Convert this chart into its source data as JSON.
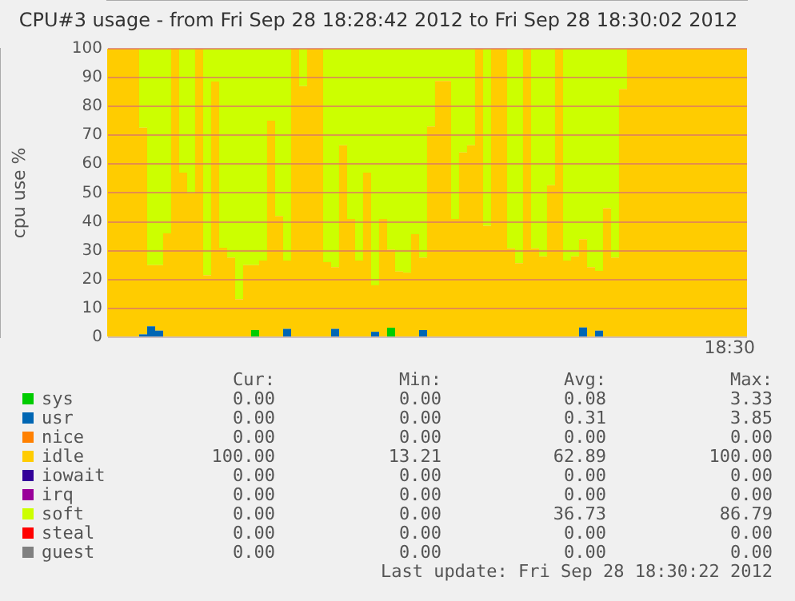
{
  "chart_data": {
    "type": "bar",
    "stacked": true,
    "title": "CPU#3 usage - from Fri Sep 28 18:28:42 2012 to Fri Sep 28 18:30:02 2012",
    "ylabel": "cpu use %",
    "categories": [
      null,
      null,
      null,
      null,
      null,
      null,
      null,
      null,
      null,
      null,
      null,
      null,
      null,
      null,
      null,
      null,
      null,
      null,
      null,
      null,
      null,
      null,
      null,
      null,
      null,
      null,
      null,
      null,
      null,
      null,
      null,
      null,
      null,
      null,
      null,
      null,
      null,
      null,
      null,
      null,
      null,
      null,
      null,
      null,
      null,
      null,
      null,
      null,
      null,
      null,
      null,
      null,
      null,
      null,
      null,
      null,
      null,
      null,
      null,
      null,
      null,
      null,
      null,
      null,
      null,
      null,
      null,
      null,
      null,
      null,
      null,
      null,
      null,
      null,
      null,
      null,
      null,
      null,
      null,
      null
    ],
    "ylim": [
      0,
      100
    ],
    "yticks": [
      0,
      10,
      20,
      30,
      40,
      50,
      60,
      70,
      80,
      90,
      100
    ],
    "grid": "y",
    "legend": "bottom",
    "series": [
      {
        "name": "sys",
        "color": "#00cc00",
        "values": [
          0,
          0,
          0,
          0,
          0,
          0,
          0,
          0,
          0,
          0,
          0,
          0,
          0,
          0,
          0,
          0,
          0,
          0,
          2.5,
          0,
          0,
          0,
          0,
          0,
          0,
          0,
          0,
          0,
          0,
          0,
          0,
          0,
          0,
          0,
          0,
          3.3,
          0,
          0,
          0,
          0,
          0,
          0,
          0,
          0,
          0,
          0,
          0,
          0,
          0,
          0,
          0,
          0,
          0,
          0,
          0,
          0,
          0,
          0,
          0,
          0,
          0,
          0,
          0,
          0,
          0,
          0,
          0,
          0,
          0,
          0,
          0,
          0,
          0,
          0,
          0,
          0,
          0,
          0,
          0,
          0
        ]
      },
      {
        "name": "usr",
        "color": "#0066b3",
        "values": [
          0,
          0,
          0,
          0,
          1,
          3.8,
          2.3,
          0,
          0,
          0,
          0,
          0,
          0,
          0,
          0,
          0,
          0,
          0,
          0,
          0,
          0,
          0,
          2.9,
          0,
          0,
          0,
          0,
          0,
          2.9,
          0,
          0,
          0,
          0,
          1.9,
          0,
          0,
          0,
          0,
          0,
          2.5,
          0,
          0,
          0,
          0,
          0,
          0,
          0,
          0,
          0,
          0,
          0,
          0,
          0,
          0,
          0,
          0,
          0,
          0,
          0,
          3.4,
          0,
          2.3,
          0,
          0,
          0,
          0,
          0,
          0,
          0,
          0,
          0,
          0,
          0,
          0,
          0,
          0,
          0,
          0,
          0,
          0
        ]
      },
      {
        "name": "nice",
        "color": "#ff8000",
        "values": [
          0,
          0,
          0,
          0,
          0,
          0,
          0,
          0,
          0,
          0,
          0,
          0,
          0,
          0,
          0,
          0,
          0,
          0,
          0,
          0,
          0,
          0,
          0,
          0,
          0,
          0,
          0,
          0,
          0,
          0,
          0,
          0,
          0,
          0,
          0,
          0,
          0,
          0,
          0,
          0,
          0,
          0,
          0,
          0,
          0,
          0,
          0,
          0,
          0,
          0,
          0,
          0,
          0,
          0,
          0,
          0,
          0,
          0,
          0,
          0,
          0,
          0,
          0,
          0,
          0,
          0,
          0,
          0,
          0,
          0,
          0,
          0,
          0,
          0,
          0,
          0,
          0,
          0,
          0,
          0
        ]
      },
      {
        "name": "idle",
        "color": "#ffcc00",
        "values": [
          100,
          100,
          100,
          100,
          71.6,
          21.2,
          22.7,
          36,
          100,
          57,
          50,
          100,
          21.5,
          88.6,
          31,
          27.6,
          13.2,
          25,
          22.5,
          26.6,
          75,
          42,
          23.7,
          100,
          87,
          100,
          100,
          26,
          21.4,
          66.5,
          41,
          26.6,
          57,
          16.1,
          41,
          27.1,
          22.8,
          22.4,
          35.7,
          25.1,
          73,
          88.8,
          88.8,
          41,
          64,
          66.5,
          100,
          38.6,
          100,
          100,
          30.8,
          25.7,
          100,
          30.8,
          28,
          52.7,
          100,
          26.6,
          28,
          30.6,
          24.3,
          20.7,
          44.7,
          27.6,
          86,
          100,
          100,
          100,
          100,
          100,
          100,
          100,
          100,
          100,
          100,
          100,
          100,
          100,
          100,
          100
        ]
      },
      {
        "name": "iowait",
        "color": "#330099",
        "values": [
          0,
          0,
          0,
          0,
          0,
          0,
          0,
          0,
          0,
          0,
          0,
          0,
          0,
          0,
          0,
          0,
          0,
          0,
          0,
          0,
          0,
          0,
          0,
          0,
          0,
          0,
          0,
          0,
          0,
          0,
          0,
          0,
          0,
          0,
          0,
          0,
          0,
          0,
          0,
          0,
          0,
          0,
          0,
          0,
          0,
          0,
          0,
          0,
          0,
          0,
          0,
          0,
          0,
          0,
          0,
          0,
          0,
          0,
          0,
          0,
          0,
          0,
          0,
          0,
          0,
          0,
          0,
          0,
          0,
          0,
          0,
          0,
          0,
          0,
          0,
          0,
          0,
          0,
          0,
          0
        ]
      },
      {
        "name": "irq",
        "color": "#990099",
        "values": [
          0,
          0,
          0,
          0,
          0,
          0,
          0,
          0,
          0,
          0,
          0,
          0,
          0,
          0,
          0,
          0,
          0,
          0,
          0,
          0,
          0,
          0,
          0,
          0,
          0,
          0,
          0,
          0,
          0,
          0,
          0,
          0,
          0,
          0,
          0,
          0,
          0,
          0,
          0,
          0,
          0,
          0,
          0,
          0,
          0,
          0,
          0,
          0,
          0,
          0,
          0,
          0,
          0,
          0,
          0,
          0,
          0,
          0,
          0,
          0,
          0,
          0,
          0,
          0,
          0,
          0,
          0,
          0,
          0,
          0,
          0,
          0,
          0,
          0,
          0,
          0,
          0,
          0,
          0,
          0
        ]
      },
      {
        "name": "soft",
        "color": "#ccff00",
        "values": [
          0,
          0,
          0,
          0,
          27.4,
          75,
          75,
          64,
          0,
          43,
          50,
          0,
          78.5,
          11.4,
          69,
          72.4,
          86.8,
          75,
          75,
          73.4,
          25,
          58,
          73.4,
          0,
          13,
          0,
          0,
          74,
          75.7,
          33.5,
          59,
          73.4,
          43,
          82,
          59,
          69.6,
          77.2,
          77.6,
          64.3,
          72.4,
          27,
          11.2,
          11.2,
          59,
          36,
          33.5,
          0,
          61.4,
          0,
          0,
          69.2,
          74.3,
          0,
          69.2,
          72,
          47.3,
          0,
          73.4,
          72,
          66,
          75.7,
          77,
          55.3,
          72.4,
          14,
          0,
          0,
          0,
          0,
          0,
          0,
          0,
          0,
          0,
          0,
          0,
          0,
          0,
          0,
          0
        ]
      },
      {
        "name": "steal",
        "color": "#ff0000",
        "values": [
          0,
          0,
          0,
          0,
          0,
          0,
          0,
          0,
          0,
          0,
          0,
          0,
          0,
          0,
          0,
          0,
          0,
          0,
          0,
          0,
          0,
          0,
          0,
          0,
          0,
          0,
          0,
          0,
          0,
          0,
          0,
          0,
          0,
          0,
          0,
          0,
          0,
          0,
          0,
          0,
          0,
          0,
          0,
          0,
          0,
          0,
          0,
          0,
          0,
          0,
          0,
          0,
          0,
          0,
          0,
          0,
          0,
          0,
          0,
          0,
          0,
          0,
          0,
          0,
          0,
          0,
          0,
          0,
          0,
          0,
          0,
          0,
          0,
          0,
          0,
          0,
          0,
          0,
          0,
          0
        ]
      },
      {
        "name": "guest",
        "color": "#808080",
        "values": [
          0,
          0,
          0,
          0,
          0,
          0,
          0,
          0,
          0,
          0,
          0,
          0,
          0,
          0,
          0,
          0,
          0,
          0,
          0,
          0,
          0,
          0,
          0,
          0,
          0,
          0,
          0,
          0,
          0,
          0,
          0,
          0,
          0,
          0,
          0,
          0,
          0,
          0,
          0,
          0,
          0,
          0,
          0,
          0,
          0,
          0,
          0,
          0,
          0,
          0,
          0,
          0,
          0,
          0,
          0,
          0,
          0,
          0,
          0,
          0,
          0,
          0,
          0,
          0,
          0,
          0,
          0,
          0,
          0,
          0,
          0,
          0,
          0,
          0,
          0,
          0,
          0,
          0,
          0,
          0
        ]
      }
    ],
    "annotations": [
      "18:30",
      "Cur:",
      "Min:",
      "Avg:",
      "Max:",
      "0.00",
      "0.00",
      "0.08",
      "3.33",
      "0.00",
      "0.00",
      "0.31",
      "3.85",
      "0.00",
      "0.00",
      "0.00",
      "0.00",
      "100.00",
      "13.21",
      "62.89",
      "100.00",
      "0.00",
      "0.00",
      "0.00",
      "0.00",
      "0.00",
      "0.00",
      "0.00",
      "0.00",
      "0.00",
      "0.00",
      "36.73",
      "86.79",
      "0.00",
      "0.00",
      "0.00",
      "0.00",
      "0.00",
      "0.00",
      "0.00",
      "0.00",
      "Last update: Fri Sep 28 18:30:22 2012"
    ]
  }
}
